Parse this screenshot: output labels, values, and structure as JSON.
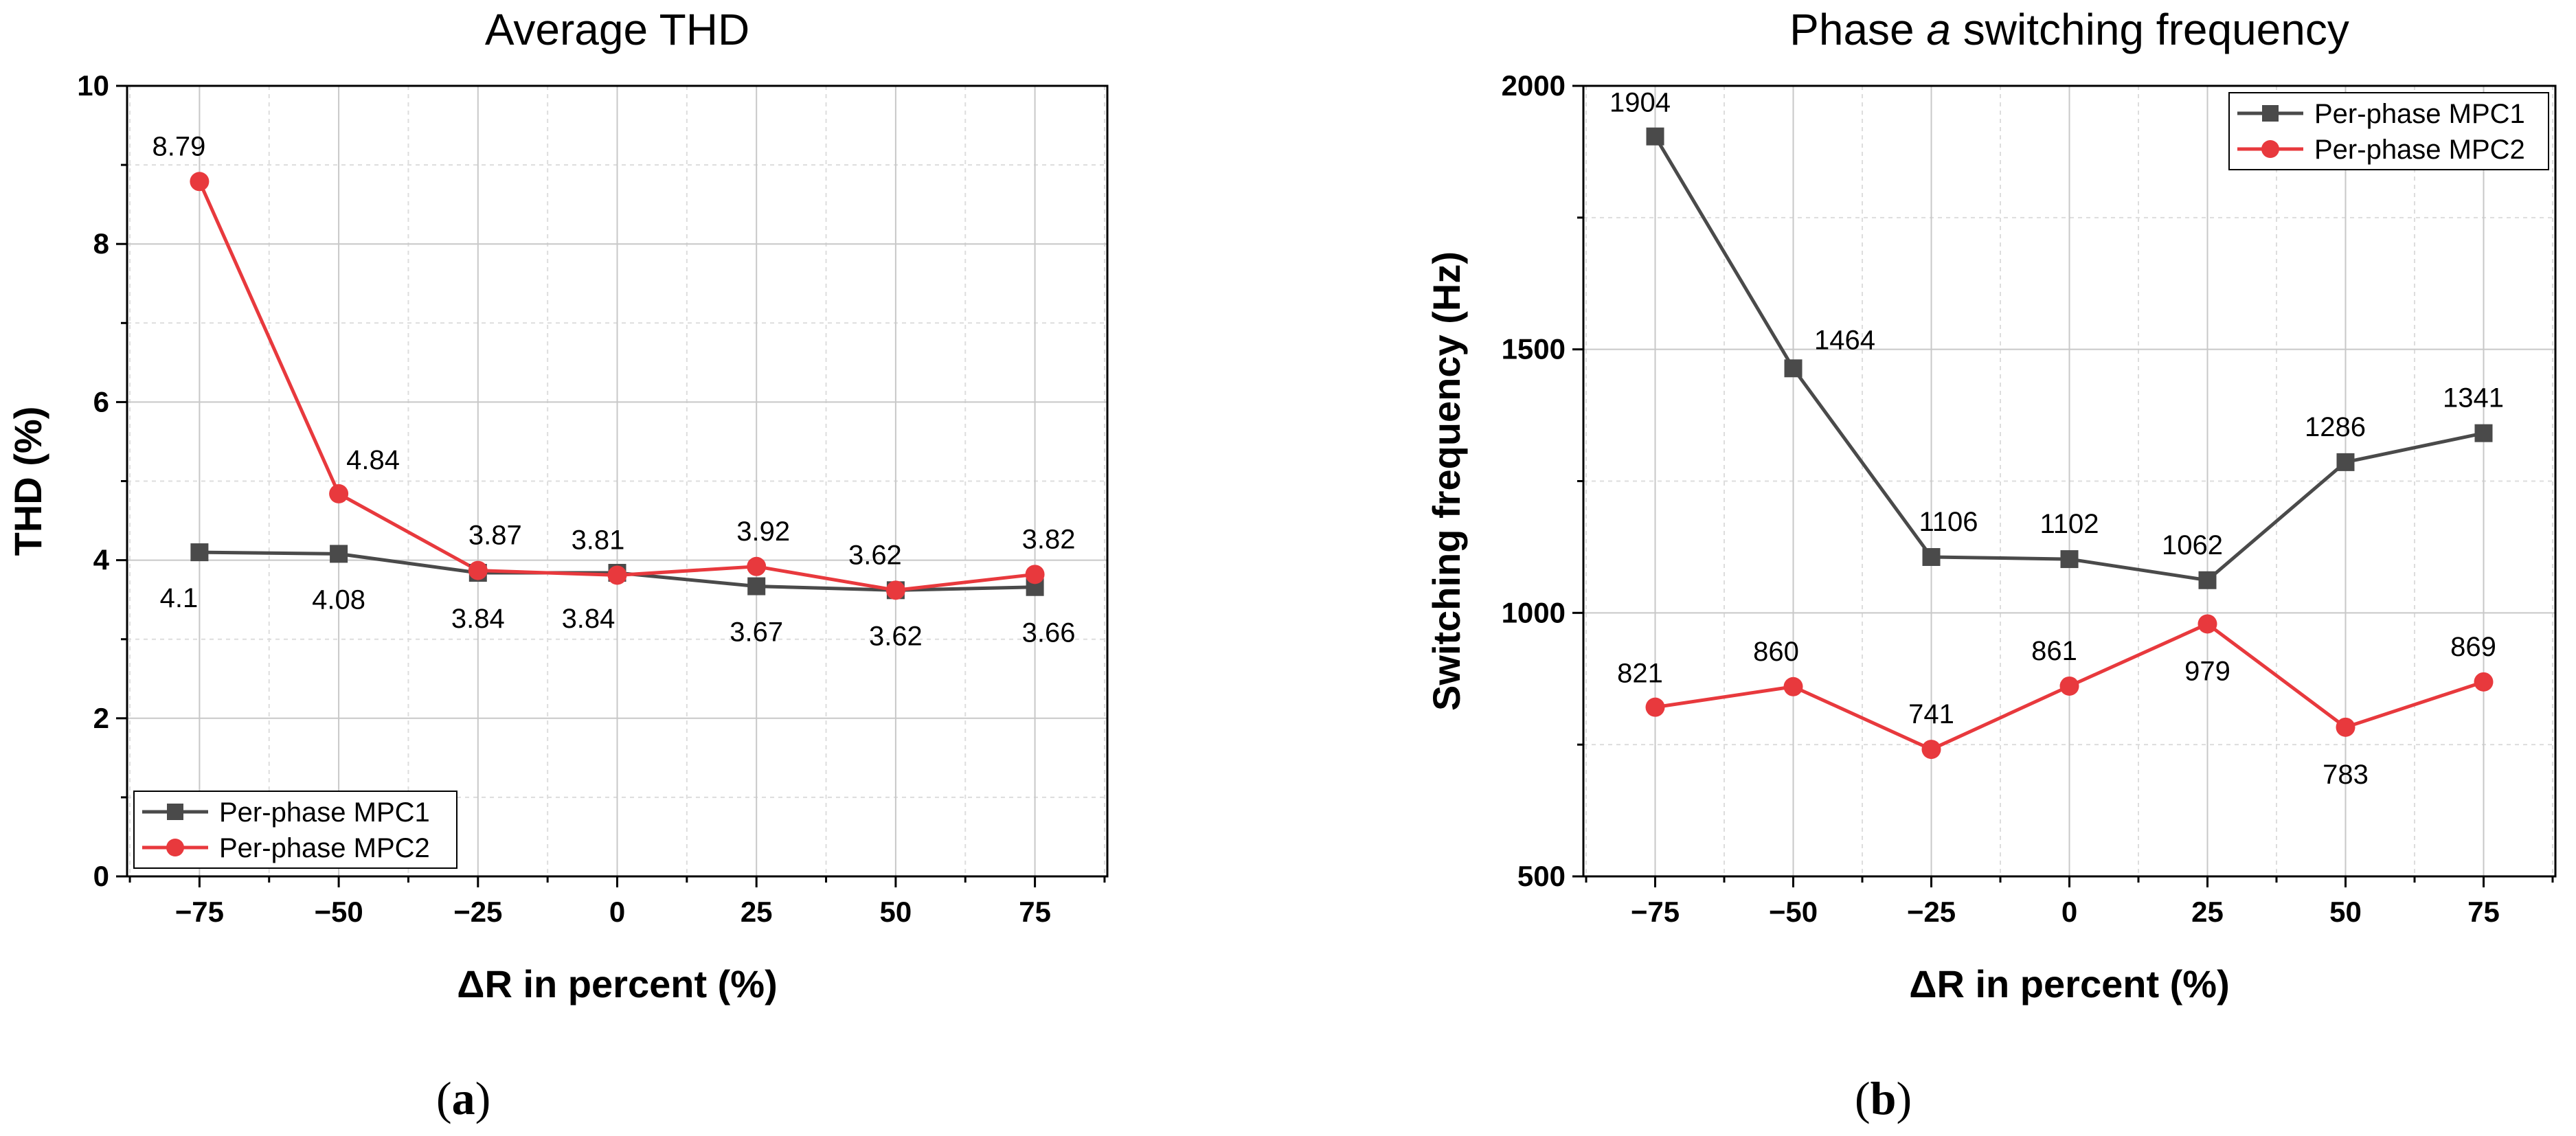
{
  "chart_data": [
    {
      "type": "line",
      "title": "Average THD",
      "xlabel": "ΔR in percent (%)",
      "ylabel": "THD (%)",
      "x": [
        -75,
        -50,
        -25,
        0,
        25,
        50,
        75
      ],
      "xlim": [
        -88,
        88
      ],
      "ylim": [
        0,
        10
      ],
      "xticks": [
        -75,
        -50,
        -25,
        0,
        25,
        50,
        75
      ],
      "xtick_labels": [
        "−75",
        "−50",
        "−25",
        "0",
        "25",
        "50",
        "75"
      ],
      "yticks": [
        0,
        2,
        4,
        6,
        8,
        10
      ],
      "ytick_labels": [
        "0",
        "2",
        "4",
        "6",
        "8",
        "10"
      ],
      "grid": true,
      "legend_position": "bottom-left",
      "series": [
        {
          "name": "Per-phase MPC1",
          "color": "#4a4a4a",
          "marker": "square",
          "values": [
            4.1,
            4.08,
            3.84,
            3.84,
            3.67,
            3.62,
            3.66
          ],
          "labels": [
            "4.1",
            "4.08",
            "3.84",
            "3.84",
            "3.67",
            "3.62",
            "3.66"
          ]
        },
        {
          "name": "Per-phase MPC2",
          "color": "#e8393d",
          "marker": "circle",
          "values": [
            8.79,
            4.84,
            3.87,
            3.81,
            3.92,
            3.62,
            3.82
          ],
          "labels": [
            "8.79",
            "4.84",
            "3.87",
            "3.81",
            "3.92",
            "3.62",
            "3.82"
          ]
        }
      ]
    },
    {
      "type": "line",
      "title": "Phase a switching frequency",
      "title_parts": [
        "Phase ",
        "a",
        " switching frequency"
      ],
      "xlabel": "ΔR in percent (%)",
      "ylabel": "Switching frequency (Hz)",
      "x": [
        -75,
        -50,
        -25,
        0,
        25,
        50,
        75
      ],
      "xlim": [
        -88,
        88
      ],
      "ylim": [
        500,
        2000
      ],
      "xticks": [
        -75,
        -50,
        -25,
        0,
        25,
        50,
        75
      ],
      "xtick_labels": [
        "−75",
        "−50",
        "−25",
        "0",
        "25",
        "50",
        "75"
      ],
      "yticks": [
        500,
        1000,
        1500,
        2000
      ],
      "ytick_labels": [
        "500",
        "1000",
        "1500",
        "2000"
      ],
      "grid": true,
      "legend_position": "top-right",
      "series": [
        {
          "name": "Per-phase MPC1",
          "color": "#4a4a4a",
          "marker": "square",
          "values": [
            1904,
            1464,
            1106,
            1102,
            1062,
            1286,
            1341
          ],
          "labels": [
            "1904",
            "1464",
            "1106",
            "1102",
            "1062",
            "1286",
            "1341"
          ]
        },
        {
          "name": "Per-phase MPC2",
          "color": "#e8393d",
          "marker": "circle",
          "values": [
            821,
            860,
            741,
            861,
            979,
            783,
            869
          ],
          "labels": [
            "821",
            "860",
            "741",
            "861",
            "979",
            "783",
            "869"
          ]
        }
      ]
    }
  ],
  "subfigure_labels": {
    "a": {
      "open": "(",
      "letter": "a",
      "close": ")"
    },
    "b": {
      "open": "(",
      "letter": "b",
      "close": ")"
    }
  }
}
